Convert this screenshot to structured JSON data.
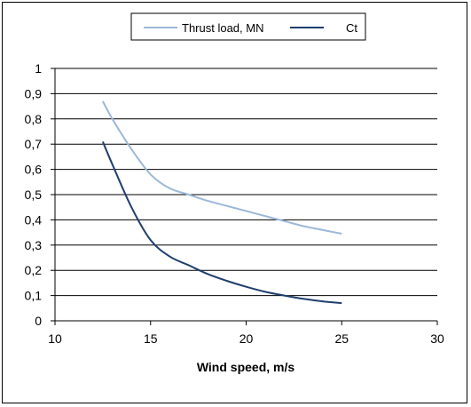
{
  "chart_data": {
    "type": "line",
    "title": "",
    "xlabel": "Wind speed,  m/s",
    "ylabel": "",
    "xlim": [
      10,
      30
    ],
    "ylim": [
      0,
      1
    ],
    "x_ticks": [
      "10",
      "15",
      "20",
      "25",
      "30"
    ],
    "y_ticks": [
      "0",
      "0,1",
      "0,2",
      "0,3",
      "0,4",
      "0,5",
      "0,6",
      "0,7",
      "0,8",
      "0,9",
      "1"
    ],
    "grid": "horizontal",
    "legend_position": "top",
    "series": [
      {
        "name": "Thrust load, MN",
        "color": "#9cb8d9",
        "x": [
          12.5,
          13,
          14,
          15,
          16,
          17,
          18,
          19,
          20,
          21,
          22,
          23,
          24,
          25
        ],
        "y": [
          0.87,
          0.8,
          0.68,
          0.58,
          0.525,
          0.5,
          0.475,
          0.455,
          0.435,
          0.415,
          0.395,
          0.375,
          0.36,
          0.345
        ]
      },
      {
        "name": "Ct",
        "color": "#1f3f6e",
        "x": [
          12.5,
          13,
          14,
          15,
          16,
          17,
          18,
          19,
          20,
          21,
          22,
          23,
          24,
          25
        ],
        "y": [
          0.71,
          0.62,
          0.45,
          0.32,
          0.255,
          0.22,
          0.185,
          0.158,
          0.135,
          0.115,
          0.1,
          0.087,
          0.077,
          0.07
        ]
      }
    ]
  }
}
